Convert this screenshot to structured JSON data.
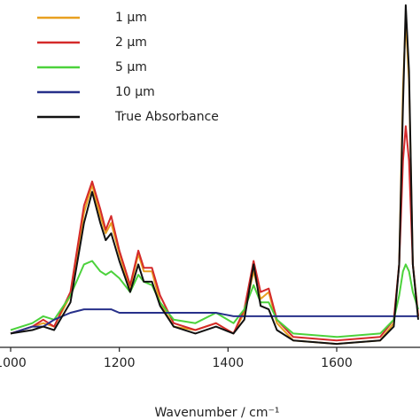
{
  "chart_data": {
    "type": "line",
    "x": [
      1000,
      1040,
      1060,
      1080,
      1110,
      1135,
      1150,
      1165,
      1175,
      1185,
      1200,
      1220,
      1235,
      1245,
      1260,
      1275,
      1300,
      1340,
      1378,
      1410,
      1430,
      1447,
      1460,
      1475,
      1490,
      1520,
      1600,
      1680,
      1705,
      1715,
      1722,
      1727,
      1733,
      1740,
      1750
    ],
    "series": [
      {
        "name": "1 µm",
        "color": "#e8a020",
        "values": [
          0.04,
          0.06,
          0.07,
          0.06,
          0.15,
          0.39,
          0.47,
          0.38,
          0.33,
          0.36,
          0.27,
          0.17,
          0.27,
          0.22,
          0.22,
          0.13,
          0.06,
          0.05,
          0.07,
          0.04,
          0.1,
          0.22,
          0.14,
          0.16,
          0.07,
          0.02,
          0.01,
          0.02,
          0.07,
          0.24,
          0.75,
          0.95,
          0.77,
          0.24,
          0.09
        ]
      },
      {
        "name": "2 µm",
        "color": "#d42a2a",
        "values": [
          0.04,
          0.06,
          0.08,
          0.06,
          0.16,
          0.41,
          0.48,
          0.4,
          0.34,
          0.38,
          0.28,
          0.18,
          0.28,
          0.23,
          0.23,
          0.15,
          0.07,
          0.05,
          0.07,
          0.04,
          0.11,
          0.25,
          0.16,
          0.17,
          0.08,
          0.03,
          0.02,
          0.03,
          0.08,
          0.24,
          0.54,
          0.64,
          0.54,
          0.24,
          0.09
        ]
      },
      {
        "name": "5 µm",
        "color": "#4cd23c",
        "values": [
          0.05,
          0.07,
          0.09,
          0.08,
          0.15,
          0.24,
          0.25,
          0.22,
          0.21,
          0.22,
          0.2,
          0.16,
          0.21,
          0.19,
          0.18,
          0.13,
          0.08,
          0.07,
          0.1,
          0.07,
          0.11,
          0.18,
          0.13,
          0.13,
          0.08,
          0.04,
          0.03,
          0.04,
          0.08,
          0.15,
          0.22,
          0.24,
          0.22,
          0.16,
          0.11
        ]
      },
      {
        "name": "10 µm",
        "color": "#27308a",
        "values": [
          0.04,
          0.06,
          0.06,
          0.08,
          0.1,
          0.11,
          0.11,
          0.11,
          0.11,
          0.11,
          0.1,
          0.1,
          0.1,
          0.1,
          0.1,
          0.1,
          0.1,
          0.1,
          0.1,
          0.09,
          0.09,
          0.09,
          0.09,
          0.09,
          0.09,
          0.09,
          0.09,
          0.09,
          0.09,
          0.09,
          0.09,
          0.09,
          0.09,
          0.09,
          0.09
        ]
      },
      {
        "name": "True Absorbance",
        "color": "#111111",
        "values": [
          0.04,
          0.05,
          0.06,
          0.05,
          0.13,
          0.36,
          0.45,
          0.36,
          0.31,
          0.33,
          0.25,
          0.16,
          0.24,
          0.19,
          0.19,
          0.12,
          0.06,
          0.04,
          0.06,
          0.04,
          0.08,
          0.24,
          0.12,
          0.11,
          0.05,
          0.02,
          0.01,
          0.02,
          0.06,
          0.24,
          0.7,
          0.99,
          0.8,
          0.24,
          0.08
        ]
      }
    ],
    "xlim": [
      1000,
      1750
    ],
    "xticks": [
      1000,
      1200,
      1400,
      1600
    ],
    "ylim": [
      0,
      1
    ],
    "xlabel": "Wavenumber / cm⁻¹",
    "legend": "upper left"
  }
}
